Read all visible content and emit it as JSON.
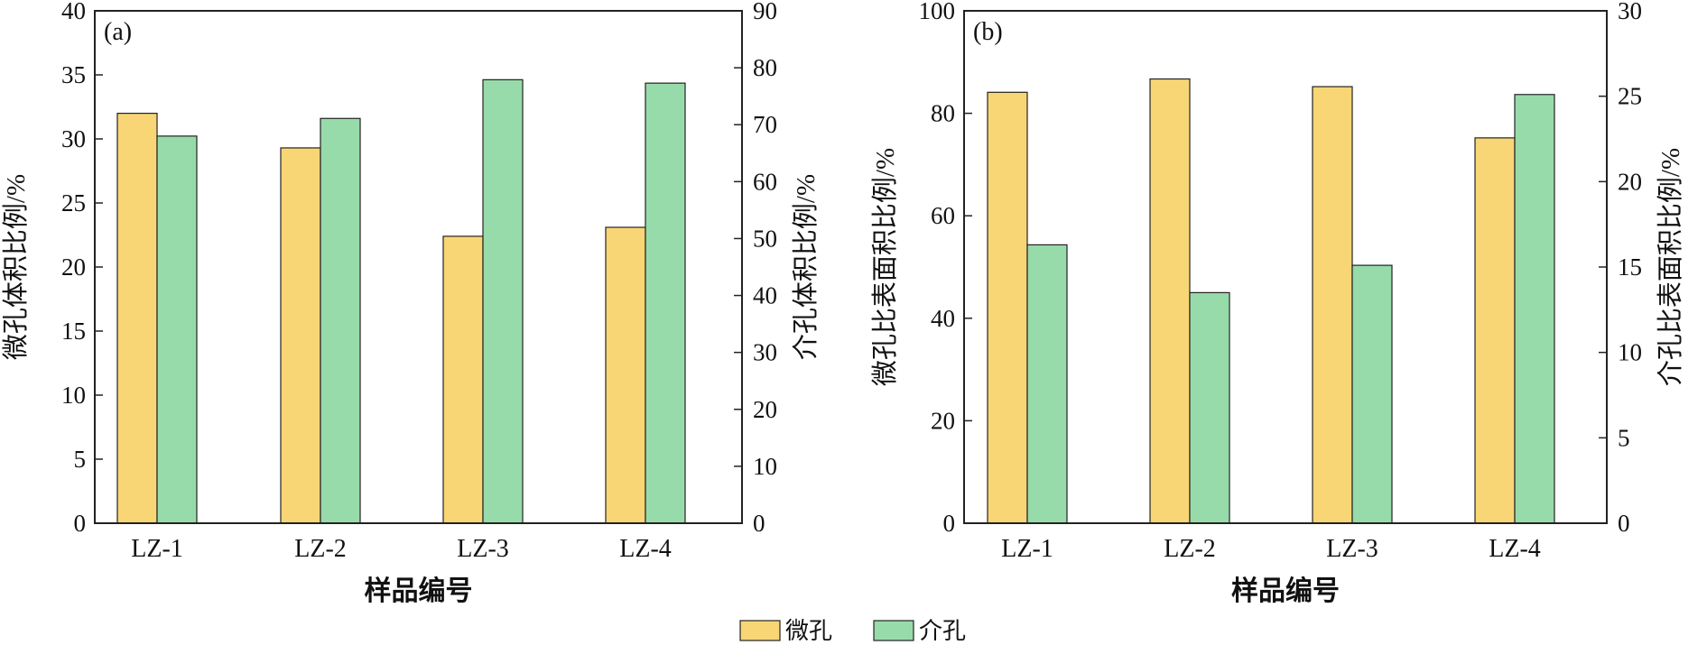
{
  "colors": {
    "micro": "#F9D675",
    "meso": "#98DBAA",
    "axis": "#222222"
  },
  "legend": {
    "items": [
      "微孔",
      "介孔"
    ]
  },
  "chart_data": [
    {
      "type": "bar",
      "panel_label": "(a)",
      "categories": [
        "LZ-1",
        "LZ-2",
        "LZ-3",
        "LZ-4"
      ],
      "xlabel": "样品编号",
      "ylabel_left": "微孔体积比例/%",
      "ylabel_right": "介孔体积比例/%",
      "ylim_left": [
        0,
        40
      ],
      "ylim_right": [
        0,
        90
      ],
      "yticks_left": [
        "0",
        "5",
        "10",
        "15",
        "20",
        "25",
        "30",
        "35",
        "40"
      ],
      "yticks_right": [
        "0",
        "10",
        "20",
        "30",
        "40",
        "50",
        "60",
        "70",
        "80",
        "90"
      ],
      "series": [
        {
          "name": "微孔",
          "axis": "left",
          "values": [
            32.0,
            29.3,
            22.4,
            23.1
          ]
        },
        {
          "name": "介孔",
          "axis": "right",
          "values": [
            68.0,
            71.1,
            77.9,
            77.3
          ]
        }
      ]
    },
    {
      "type": "bar",
      "panel_label": "(b)",
      "categories": [
        "LZ-1",
        "LZ-2",
        "LZ-3",
        "LZ-4"
      ],
      "xlabel": "样品编号",
      "ylabel_left": "微孔比表面积比例/%",
      "ylabel_right": "介孔比表面积比例/%",
      "ylim_left": [
        0,
        100
      ],
      "ylim_right": [
        0,
        30
      ],
      "yticks_left": [
        "0",
        "20",
        "40",
        "60",
        "80",
        "100"
      ],
      "yticks_right": [
        "0",
        "5",
        "10",
        "15",
        "20",
        "25",
        "30"
      ],
      "series": [
        {
          "name": "微孔",
          "axis": "left",
          "values": [
            84.1,
            86.7,
            85.2,
            75.2
          ]
        },
        {
          "name": "介孔",
          "axis": "right",
          "values": [
            16.3,
            13.5,
            15.1,
            25.1
          ]
        }
      ]
    }
  ]
}
